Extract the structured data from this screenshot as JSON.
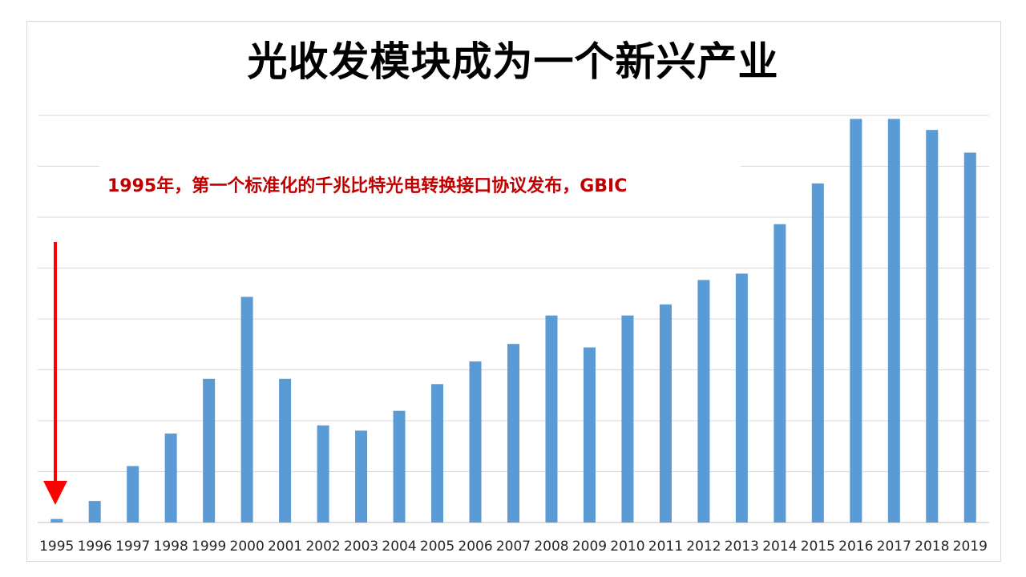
{
  "title": "光收发模块成为一个新兴产业",
  "annotation": {
    "text": "1995年，第一个标准化的千兆比特光电转换接口协议发布，GBIC"
  },
  "colors": {
    "bar": "#5b9bd5",
    "annotation": "#c00000",
    "arrow": "#ff0000",
    "grid": "#d9d9d9"
  },
  "chart_data": {
    "type": "bar",
    "categories": [
      "1995",
      "1996",
      "1997",
      "1998",
      "1999",
      "2000",
      "2001",
      "2002",
      "2003",
      "2004",
      "2005",
      "2006",
      "2007",
      "2008",
      "2009",
      "2010",
      "2011",
      "2012",
      "2013",
      "2014",
      "2015",
      "2016",
      "2017",
      "2018",
      "2019"
    ],
    "values": [
      0.6,
      3.7,
      9.7,
      15.3,
      24.7,
      38.8,
      24.7,
      16.7,
      15.8,
      19.2,
      23.8,
      27.7,
      30.7,
      35.6,
      30.1,
      35.6,
      37.5,
      41.7,
      42.8,
      51.3,
      58.3,
      69.4,
      69.4,
      67.5,
      63.6
    ],
    "ylim": [
      0,
      70
    ],
    "grid": true,
    "xlabel": "",
    "ylabel": ""
  }
}
